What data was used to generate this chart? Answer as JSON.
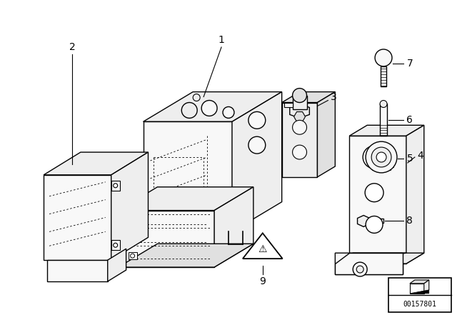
{
  "background_color": "#ffffff",
  "line_color": "#000000",
  "text_color": "#000000",
  "part_label_fontsize": 10,
  "diagram_id": "00157801",
  "fig_width": 6.4,
  "fig_height": 4.48,
  "dpi": 100,
  "face_light": "#f8f8f8",
  "face_mid": "#eeeeee",
  "face_dark": "#e0e0e0"
}
